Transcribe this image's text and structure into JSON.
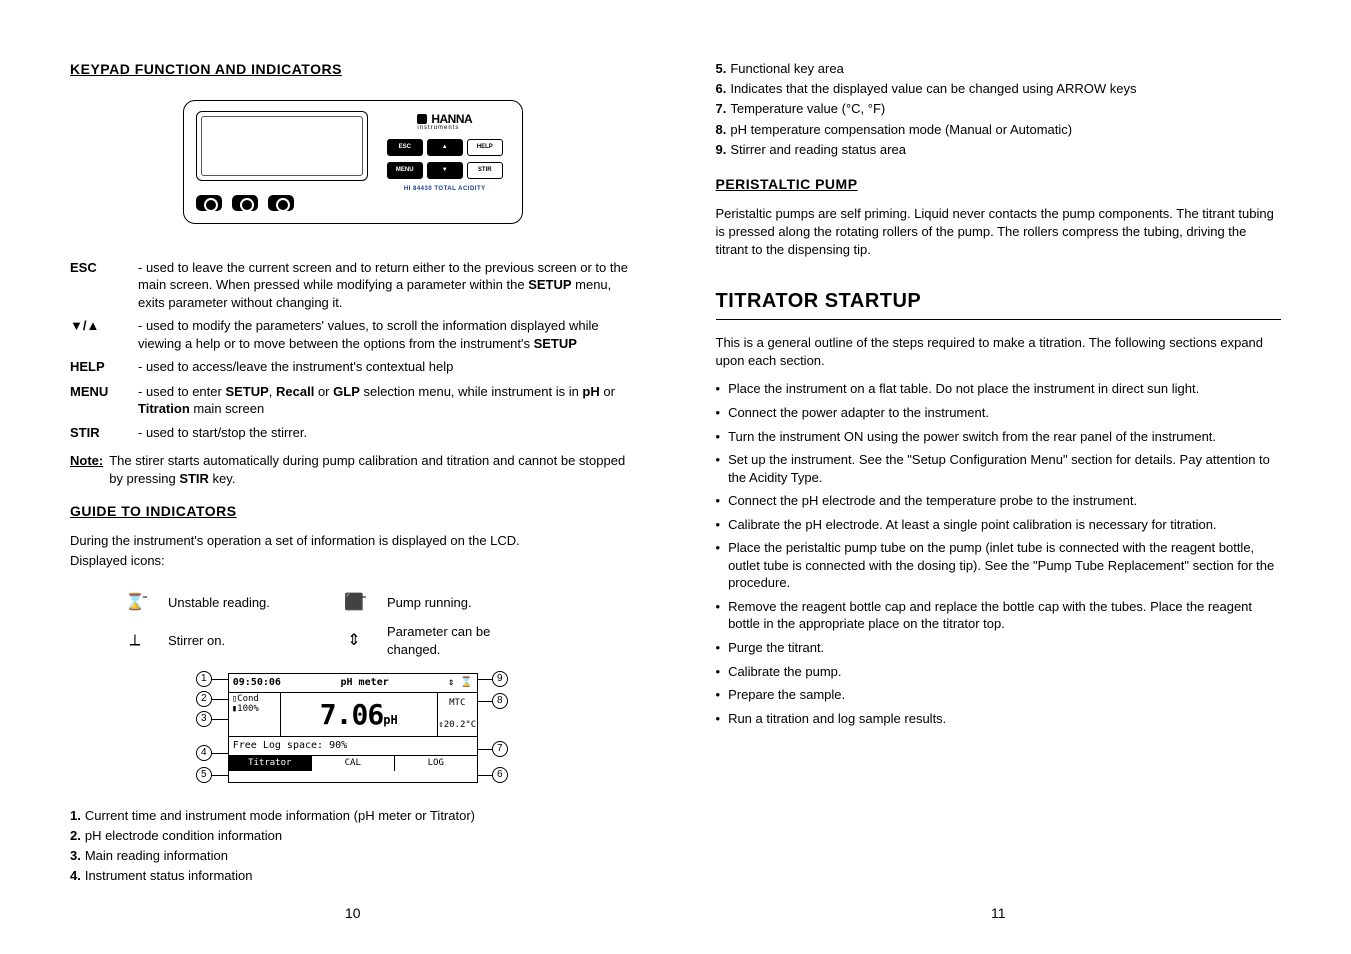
{
  "left": {
    "title": "KEYPAD FUNCTION AND INDICATORS",
    "keypad": {
      "brand": "HANNA",
      "brand_sub": "instruments",
      "buttons": {
        "esc": "ESC",
        "up": "▲",
        "help": "HELP",
        "menu": "MENU",
        "down": "▼",
        "stir": "STIR"
      },
      "model": "HI 84430 TOTAL ACIDITY"
    },
    "defs": [
      {
        "key": "ESC",
        "text": "- used to leave the current screen and to return either to the previous screen or to the main screen. When pressed while modifying a parameter within the SETUP menu, exits parameter without changing it.",
        "bold": [
          "SETUP"
        ]
      },
      {
        "key": "▼/▲",
        "text": "- used to modify the parameters' values, to scroll the information displayed while viewing a help or to move between the options from the instrument's SETUP",
        "bold": [
          "SETUP"
        ]
      },
      {
        "key": "HELP",
        "text": "- used to access/leave the instrument's contextual help"
      },
      {
        "key": "MENU",
        "text": "- used to enter SETUP, Recall or GLP selection menu, while instrument is in pH or Titration main screen",
        "bold": [
          "SETUP",
          "Recall",
          "GLP",
          "pH",
          "Titration"
        ]
      },
      {
        "key": "STIR",
        "text": "- used to start/stop the stirrer."
      }
    ],
    "note_label": "Note:",
    "note_text": "The stirer starts automatically during pump calibration and titration and cannot be stopped by pressing STIR key.",
    "note_bold": [
      "STIR"
    ],
    "guide_title": "GUIDE TO INDICATORS",
    "guide_intro1": "During the instrument's operation a set of information is displayed on the LCD.",
    "guide_intro2": "Displayed icons:",
    "indicators": [
      {
        "icon": "⌛̄",
        "label": "Unstable reading."
      },
      {
        "icon": "⬛̄",
        "label": "Pump running."
      },
      {
        "icon": "⟂",
        "label": "Stirrer on."
      },
      {
        "icon": "⇕",
        "label": "Parameter can be changed."
      }
    ],
    "lcd": {
      "time": "09:50:06",
      "mode": "pH meter",
      "status_icons": "⇕ ⌛",
      "cond_l1": "Cond",
      "cond_l2": "100%",
      "main_value": "7.06",
      "main_unit": "pH",
      "right_l1": "MTC",
      "right_l2": "⇕20.2°C",
      "freespace": "Free Log space: 90%",
      "soft": [
        "Titrator",
        "CAL",
        "LOG"
      ]
    },
    "numbered_1_4": [
      {
        "n": "1.",
        "t": "Current time and instrument mode information (pH meter or Titrator)"
      },
      {
        "n": "2.",
        "t": "pH electrode condition information"
      },
      {
        "n": "3.",
        "t": "Main reading information"
      },
      {
        "n": "4.",
        "t": "Instrument status information"
      }
    ],
    "page": "10"
  },
  "right": {
    "numbered_5_9": [
      {
        "n": "5.",
        "t": "Functional key area"
      },
      {
        "n": "6.",
        "t": "Indicates that the displayed value can be changed using ARROW keys"
      },
      {
        "n": "7.",
        "t": "Temperature value (°C, °F)"
      },
      {
        "n": "8.",
        "t": "pH temperature compensation mode (Manual or Automatic)"
      },
      {
        "n": "9.",
        "t": "Stirrer and reading status area"
      }
    ],
    "pump_title": "PERISTALTIC PUMP",
    "pump_text": "Peristaltic pumps are self priming. Liquid never contacts the pump components. The titrant tubing is pressed along the rotating rollers of the pump. The rollers compress the tubing, driving the titrant to the dispensing tip.",
    "startup_heading": "TITRATOR STARTUP",
    "startup_intro": "This is a general outline of the steps required to make a titration. The following sections expand upon each section.",
    "bullets": [
      "Place the instrument on a flat table. Do not place the instrument in direct sun light.",
      "Connect the power adapter to the instrument.",
      "Turn the instrument ON using the power switch from the rear panel of the instrument.",
      "Set up the instrument. See the \"Setup Configuration Menu\" section for details. Pay attention to the Acidity Type.",
      "Connect the pH electrode and the temperature probe to the instrument.",
      "Calibrate the pH electrode. At least a single point calibration is necessary for titration.",
      "Place the peristaltic pump tube on the pump (inlet tube is connected with the reagent bottle, outlet tube is connected with the dosing tip). See the \"Pump Tube Replacement\" section for the procedure.",
      "Remove the reagent bottle cap and replace the bottle cap with the tubes. Place the reagent bottle in the appropriate place on the titrator top.",
      "Purge the titrant.",
      "Calibrate the pump.",
      "Prepare the sample.",
      "Run a titration and log sample results."
    ],
    "page": "11"
  },
  "colors": {
    "text": "#000000",
    "background": "#ffffff",
    "model_text": "#1a3d8c"
  }
}
